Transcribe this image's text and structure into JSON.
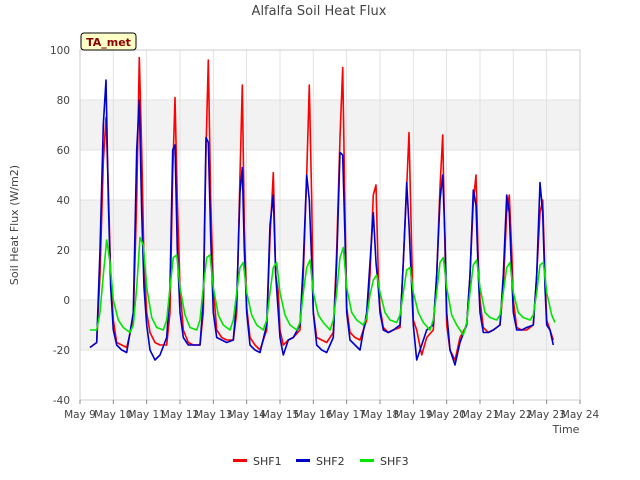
{
  "chart_data": {
    "type": "line",
    "title": "Alfalfa Soil Heat Flux",
    "xlabel": "Time",
    "ylabel": "Soil Heat Flux (W/m2)",
    "xlim": [
      9,
      24
    ],
    "ylim": [
      -40,
      100
    ],
    "yticks": [
      -40,
      -20,
      0,
      20,
      40,
      60,
      80,
      100
    ],
    "xticks": [
      {
        "value": 9,
        "label": "May 9"
      },
      {
        "value": 10,
        "label": "May 10"
      },
      {
        "value": 11,
        "label": "May 11"
      },
      {
        "value": 12,
        "label": "May 12"
      },
      {
        "value": 13,
        "label": "May 13"
      },
      {
        "value": 14,
        "label": "May 14"
      },
      {
        "value": 15,
        "label": "May 15"
      },
      {
        "value": 16,
        "label": "May 16"
      },
      {
        "value": 17,
        "label": "May 17"
      },
      {
        "value": 18,
        "label": "May 18"
      },
      {
        "value": 19,
        "label": "May 19"
      },
      {
        "value": 20,
        "label": "May 20"
      },
      {
        "value": 21,
        "label": "May 21"
      },
      {
        "value": 22,
        "label": "May 22"
      },
      {
        "value": 23,
        "label": "May 23"
      },
      {
        "value": 24,
        "label": "May 24"
      }
    ],
    "badge": "TA_met",
    "background": {
      "band_color": "#f2f2f2",
      "plot_color": "#ffffff",
      "grid_color": "#dcdcdc"
    },
    "series": [
      {
        "name": "SHF1",
        "color": "#ff0000",
        "x": [
          9.3,
          9.5,
          9.6,
          9.7,
          9.78,
          9.85,
          9.92,
          10.0,
          10.1,
          10.25,
          10.4,
          10.6,
          10.7,
          10.78,
          10.85,
          10.92,
          11.0,
          11.1,
          11.25,
          11.4,
          11.6,
          11.7,
          11.78,
          11.85,
          11.92,
          12.0,
          12.1,
          12.25,
          12.4,
          12.6,
          12.7,
          12.78,
          12.85,
          12.92,
          13.0,
          13.1,
          13.25,
          13.4,
          13.6,
          13.7,
          13.8,
          13.87,
          13.93,
          14.0,
          14.1,
          14.25,
          14.4,
          14.6,
          14.7,
          14.8,
          14.87,
          14.95,
          15.0,
          15.1,
          15.25,
          15.4,
          15.6,
          15.7,
          15.8,
          15.88,
          15.95,
          16.0,
          16.1,
          16.25,
          16.4,
          16.6,
          16.7,
          16.8,
          16.88,
          16.95,
          17.0,
          17.1,
          17.25,
          17.4,
          17.6,
          17.7,
          17.8,
          17.88,
          17.95,
          18.0,
          18.1,
          18.25,
          18.4,
          18.6,
          18.7,
          18.8,
          18.87,
          18.95,
          19.0,
          19.1,
          19.25,
          19.4,
          19.6,
          19.7,
          19.8,
          19.88,
          19.95,
          20.0,
          20.1,
          20.25,
          20.4,
          20.6,
          20.7,
          20.8,
          20.88,
          20.95,
          21.0,
          21.1,
          21.25,
          21.4,
          21.6,
          21.7,
          21.8,
          21.88,
          21.95,
          22.0,
          22.1,
          22.25,
          22.4,
          22.6,
          22.7,
          22.8,
          22.88,
          22.95,
          23.0,
          23.1,
          23.2
        ],
        "values": [
          -19,
          -17,
          10,
          55,
          73,
          45,
          10,
          -8,
          -17,
          -18,
          -19,
          -8,
          40,
          97,
          60,
          15,
          -5,
          -13,
          -17,
          -18,
          -18,
          -5,
          50,
          81,
          40,
          5,
          -12,
          -17,
          -18,
          -18,
          -5,
          60,
          96,
          40,
          5,
          -12,
          -15,
          -16,
          -16,
          -5,
          50,
          86,
          30,
          -3,
          -15,
          -18,
          -20,
          -12,
          25,
          51,
          10,
          3,
          -12,
          -18,
          -16,
          -15,
          -12,
          10,
          50,
          86,
          40,
          -5,
          -15,
          -16,
          -17,
          -13,
          20,
          65,
          93,
          35,
          -3,
          -13,
          -15,
          -16,
          -8,
          10,
          42,
          46,
          10,
          -3,
          -11,
          -13,
          -12,
          -11,
          15,
          45,
          67,
          20,
          -8,
          -12,
          -22,
          -15,
          -12,
          10,
          45,
          66,
          20,
          -10,
          -20,
          -24,
          -15,
          -10,
          10,
          39,
          50,
          15,
          0,
          -11,
          -13,
          -12,
          -10,
          5,
          35,
          42,
          20,
          0,
          -11,
          -12,
          -12,
          -10,
          10,
          35,
          40,
          10,
          -8,
          -12,
          -16
        ]
      },
      {
        "name": "SHF2",
        "color": "#0000cc",
        "x": [
          9.3,
          9.5,
          9.6,
          9.7,
          9.78,
          9.85,
          9.92,
          10.0,
          10.1,
          10.25,
          10.4,
          10.6,
          10.7,
          10.78,
          10.85,
          10.92,
          11.0,
          11.1,
          11.25,
          11.4,
          11.6,
          11.7,
          11.78,
          11.85,
          11.92,
          12.0,
          12.1,
          12.25,
          12.4,
          12.6,
          12.7,
          12.78,
          12.85,
          12.92,
          13.0,
          13.1,
          13.25,
          13.4,
          13.6,
          13.7,
          13.8,
          13.87,
          13.93,
          14.0,
          14.1,
          14.25,
          14.4,
          14.6,
          14.7,
          14.8,
          14.87,
          14.95,
          15.0,
          15.1,
          15.25,
          15.4,
          15.6,
          15.7,
          15.8,
          15.88,
          15.95,
          16.0,
          16.1,
          16.25,
          16.4,
          16.6,
          16.7,
          16.8,
          16.88,
          16.95,
          17.0,
          17.1,
          17.25,
          17.4,
          17.6,
          17.7,
          17.8,
          17.88,
          17.95,
          18.0,
          18.1,
          18.25,
          18.4,
          18.6,
          18.7,
          18.8,
          18.87,
          18.95,
          19.0,
          19.1,
          19.25,
          19.4,
          19.6,
          19.7,
          19.8,
          19.88,
          19.95,
          20.0,
          20.1,
          20.25,
          20.4,
          20.6,
          20.7,
          20.8,
          20.88,
          20.95,
          21.0,
          21.1,
          21.25,
          21.4,
          21.6,
          21.7,
          21.8,
          21.88,
          21.95,
          22.0,
          22.1,
          22.25,
          22.4,
          22.6,
          22.7,
          22.8,
          22.88,
          22.95,
          23.0,
          23.1,
          23.2
        ],
        "values": [
          -19,
          -17,
          20,
          70,
          88,
          40,
          5,
          -12,
          -18,
          -20,
          -21,
          -5,
          60,
          80,
          35,
          5,
          -10,
          -20,
          -24,
          -22,
          -15,
          5,
          60,
          62,
          20,
          -5,
          -15,
          -18,
          -18,
          -18,
          0,
          65,
          63,
          25,
          -5,
          -15,
          -16,
          -17,
          -16,
          0,
          43,
          53,
          20,
          -5,
          -18,
          -20,
          -21,
          -10,
          30,
          42,
          10,
          -5,
          -15,
          -22,
          -16,
          -15,
          -10,
          15,
          50,
          40,
          15,
          -5,
          -18,
          -20,
          -21,
          -15,
          15,
          59,
          58,
          25,
          -5,
          -16,
          -18,
          -20,
          -5,
          15,
          35,
          15,
          5,
          -5,
          -12,
          -13,
          -12,
          -10,
          15,
          47,
          30,
          5,
          -10,
          -24,
          -18,
          -12,
          -10,
          10,
          40,
          50,
          25,
          -5,
          -20,
          -26,
          -17,
          -10,
          10,
          44,
          38,
          10,
          -5,
          -13,
          -13,
          -12,
          -10,
          10,
          42,
          35,
          10,
          -5,
          -12,
          -12,
          -11,
          -10,
          10,
          47,
          35,
          5,
          -10,
          -12,
          -18
        ]
      },
      {
        "name": "SHF3",
        "color": "#00e600",
        "x": [
          9.3,
          9.5,
          9.6,
          9.7,
          9.8,
          9.9,
          10.0,
          10.15,
          10.3,
          10.5,
          10.6,
          10.7,
          10.8,
          10.9,
          11.0,
          11.15,
          11.3,
          11.5,
          11.6,
          11.7,
          11.8,
          11.9,
          12.0,
          12.15,
          12.3,
          12.5,
          12.6,
          12.7,
          12.8,
          12.9,
          13.0,
          13.15,
          13.3,
          13.5,
          13.6,
          13.7,
          13.8,
          13.9,
          14.0,
          14.15,
          14.3,
          14.5,
          14.6,
          14.7,
          14.8,
          14.9,
          15.0,
          15.15,
          15.3,
          15.5,
          15.6,
          15.7,
          15.8,
          15.9,
          16.0,
          16.15,
          16.3,
          16.5,
          16.6,
          16.7,
          16.8,
          16.9,
          17.0,
          17.15,
          17.3,
          17.5,
          17.6,
          17.7,
          17.8,
          17.9,
          18.0,
          18.15,
          18.3,
          18.5,
          18.6,
          18.7,
          18.8,
          18.9,
          19.0,
          19.15,
          19.3,
          19.5,
          19.6,
          19.7,
          19.8,
          19.9,
          20.0,
          20.15,
          20.3,
          20.5,
          20.6,
          20.7,
          20.8,
          20.9,
          21.0,
          21.15,
          21.3,
          21.5,
          21.6,
          21.7,
          21.8,
          21.9,
          22.0,
          22.15,
          22.3,
          22.5,
          22.6,
          22.7,
          22.8,
          22.9,
          23.0,
          23.15,
          23.25
        ],
        "values": [
          -12,
          -12,
          -5,
          10,
          24,
          15,
          0,
          -8,
          -11,
          -13,
          -10,
          5,
          25,
          22,
          5,
          -7,
          -11,
          -12,
          -8,
          5,
          17,
          18,
          5,
          -6,
          -11,
          -12,
          -8,
          5,
          17,
          18,
          5,
          -6,
          -10,
          -12,
          -8,
          3,
          13,
          15,
          3,
          -6,
          -10,
          -12,
          -8,
          3,
          13,
          15,
          3,
          -6,
          -10,
          -12,
          -9,
          3,
          13,
          16,
          3,
          -6,
          -9,
          -12,
          -8,
          3,
          17,
          21,
          5,
          -5,
          -8,
          -10,
          -7,
          2,
          8,
          10,
          3,
          -5,
          -8,
          -9,
          -6,
          3,
          12,
          13,
          3,
          -5,
          -9,
          -12,
          -8,
          3,
          15,
          17,
          5,
          -6,
          -10,
          -14,
          -9,
          3,
          14,
          16,
          5,
          -5,
          -7,
          -8,
          -6,
          3,
          13,
          15,
          3,
          -5,
          -7,
          -8,
          -6,
          3,
          14,
          15,
          3,
          -6,
          -9
        ]
      }
    ]
  }
}
